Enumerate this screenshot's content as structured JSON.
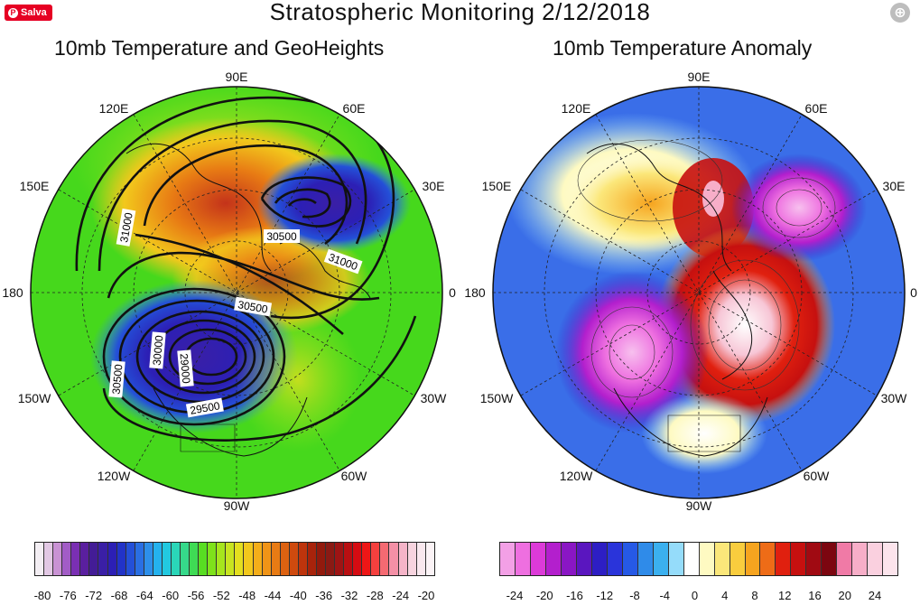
{
  "header": {
    "title": "Stratospheric Monitoring  2/12/2018",
    "save_label": "Salva"
  },
  "left_panel": {
    "title": "10mb Temperature and GeoHeights",
    "contour_labels": [
      "31000",
      "30500",
      "31000",
      "30500",
      "30000",
      "29000",
      "30500",
      "29500"
    ],
    "colorbar_ticks": [
      "-80",
      "-76",
      "-72",
      "-68",
      "-64",
      "-60",
      "-56",
      "-52",
      "-48",
      "-44",
      "-40",
      "-36",
      "-32",
      "-28",
      "-24",
      "-20"
    ],
    "colorbar_colors": [
      "#f3eef3",
      "#e2c8e4",
      "#c992d4",
      "#a25cc6",
      "#7a2fb3",
      "#5a1f9f",
      "#431c96",
      "#3a1fa6",
      "#2c1fb5",
      "#2233c8",
      "#2450d8",
      "#2a6fe3",
      "#2d8fea",
      "#24b2ee",
      "#22c9e0",
      "#2ad6b8",
      "#36d98a",
      "#3fdb54",
      "#58dd22",
      "#7ee21b",
      "#a6e51d",
      "#c8e420",
      "#e4df1f",
      "#f2c81c",
      "#f4ae1a",
      "#f09417",
      "#e87b14",
      "#dd6211",
      "#cf4a0e",
      "#be340c",
      "#a8230b",
      "#921a0d",
      "#8a1a14",
      "#9e1414",
      "#b90f12",
      "#d60c12",
      "#ee1616",
      "#f5403e",
      "#f56a72",
      "#f490a6",
      "#f5b4c8",
      "#f7d4df",
      "#f9e8ee",
      "#fbf3f6"
    ]
  },
  "right_panel": {
    "title": "10mb Temperature Anomaly",
    "colorbar_ticks": [
      "-24",
      "-20",
      "-16",
      "-12",
      "-8",
      "-4",
      "0",
      "4",
      "8",
      "12",
      "16",
      "20",
      "24"
    ],
    "colorbar_colors": [
      "#f3a0e6",
      "#ee6fe0",
      "#dc3ad8",
      "#b31fcd",
      "#8a16c4",
      "#5a16bf",
      "#2d1ec4",
      "#2a34da",
      "#2659e6",
      "#2f8be9",
      "#3bb0ef",
      "#95dcfa",
      "#ffffff",
      "#fefac2",
      "#fbe77a",
      "#f9cd3e",
      "#f6a41f",
      "#ee6c17",
      "#e0200f",
      "#c6100f",
      "#a00a12",
      "#7c0610",
      "#f07aa6",
      "#f7aec8",
      "#fad0df",
      "#fce4ec"
    ]
  },
  "map_labels": {
    "n90e": "90E",
    "n120e": "120E",
    "n60e": "60E",
    "n150e": "150E",
    "n30e": "30E",
    "n180": "180",
    "n0": "0",
    "n150w": "150W",
    "n30w": "30W",
    "n120w": "120W",
    "n60w": "60W",
    "n90w": "90W"
  },
  "colors": {
    "left_background": "#46d81c",
    "right_background": "#3a6ee8"
  }
}
